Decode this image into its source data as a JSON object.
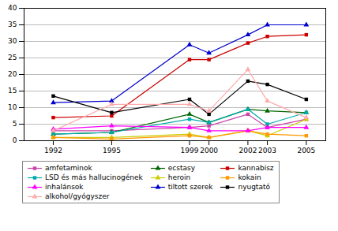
{
  "chart_data": {
    "type": "line",
    "x": [
      1992,
      1995,
      1999,
      2000,
      2002,
      2003,
      2005
    ],
    "xlim": [
      1990.5,
      2006
    ],
    "xticks": [
      1992,
      1995,
      1999,
      2000,
      2002,
      2003,
      2005
    ],
    "ylim": [
      0,
      40
    ],
    "yticks": [
      0,
      5,
      10,
      15,
      20,
      25,
      30,
      35,
      40
    ],
    "grid": true,
    "legend": "bottom",
    "series": [
      {
        "name": "amfetaminok",
        "color": "#cc44aa",
        "marker": "square",
        "values": [
          3.0,
          3.0,
          4.0,
          4.5,
          8.0,
          4.0,
          6.5
        ]
      },
      {
        "name": "ecstasy",
        "color": "#006600",
        "marker": "triangle",
        "values": [
          2.0,
          2.5,
          8.0,
          5.5,
          9.5,
          9.0,
          8.5
        ]
      },
      {
        "name": "kannabisz",
        "color": "#cc0000",
        "marker": "square",
        "values": [
          7.0,
          7.5,
          24.5,
          24.5,
          29.5,
          31.5,
          32.0
        ]
      },
      {
        "name": "LSD és más hallucinogének",
        "color": "#00aaaa",
        "marker": "square",
        "values": [
          2.0,
          2.5,
          6.5,
          5.5,
          9.5,
          5.0,
          8.5
        ]
      },
      {
        "name": "heroin",
        "color": "#cccc00",
        "marker": "triangle",
        "values": [
          1.0,
          1.0,
          2.0,
          1.0,
          3.0,
          1.5,
          6.5
        ]
      },
      {
        "name": "kokain",
        "color": "#ff9900",
        "marker": "square",
        "values": [
          1.0,
          0.5,
          1.5,
          1.0,
          3.0,
          2.0,
          1.5
        ]
      },
      {
        "name": "inhalánsok",
        "color": "#ff00ff",
        "marker": "triangle",
        "values": [
          3.5,
          4.5,
          4.0,
          3.0,
          3.0,
          4.0,
          4.0
        ]
      },
      {
        "name": "tiltott szerek",
        "color": "#0000cc",
        "marker": "triangle",
        "values": [
          11.5,
          12.0,
          29.0,
          26.5,
          32.0,
          35.0,
          35.0
        ]
      },
      {
        "name": "nyugtató",
        "color": "#000000",
        "marker": "square",
        "values": [
          13.5,
          8.5,
          12.5,
          8.0,
          18.0,
          17.0,
          12.5
        ]
      },
      {
        "name": "alkohol/gyógyszer",
        "color": "#ffaaaa",
        "marker": "triangle",
        "values": [
          3.0,
          11.0,
          11.0,
          9.0,
          21.5,
          12.0,
          7.0
        ]
      }
    ]
  }
}
